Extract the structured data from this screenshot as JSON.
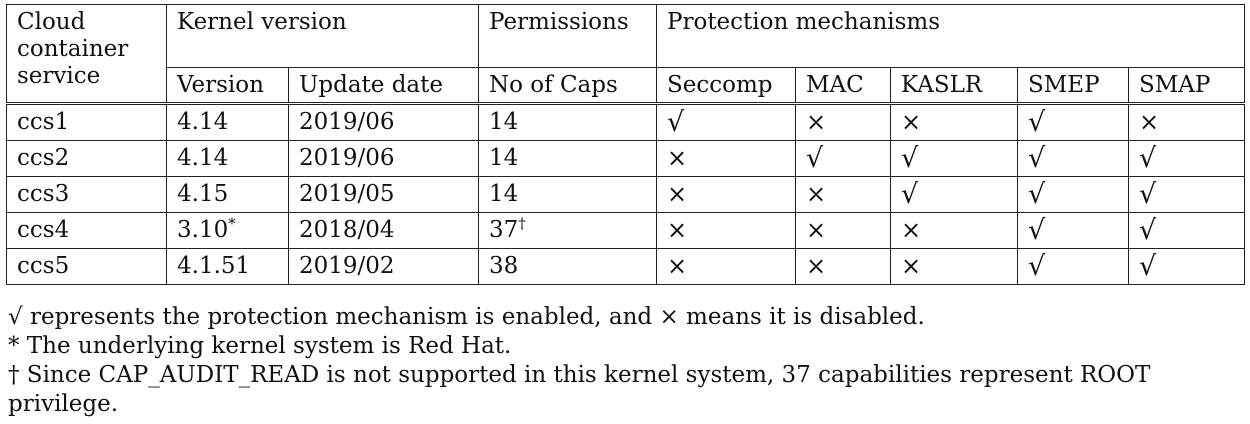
{
  "header": {
    "service": "Cloud container service",
    "kernel_version": "Kernel version",
    "permissions": "Permissions",
    "protection": "Protection mechanisms",
    "sub": {
      "version": "Version",
      "update_date": "Update date",
      "no_of_caps": "No of Caps",
      "seccomp": "Seccomp",
      "mac": "MAC",
      "kaslr": "KASLR",
      "smep": "SMEP",
      "smap": "SMAP"
    }
  },
  "rows": [
    {
      "name": "ccs1",
      "version": "4.14",
      "version_sup": "",
      "date": "2019/06",
      "caps": "14",
      "caps_sup": "",
      "seccomp": "√",
      "mac": "×",
      "kaslr": "×",
      "smep": "√",
      "smap": "×"
    },
    {
      "name": "ccs2",
      "version": "4.14",
      "version_sup": "",
      "date": "2019/06",
      "caps": "14",
      "caps_sup": "",
      "seccomp": "×",
      "mac": "√",
      "kaslr": "√",
      "smep": "√",
      "smap": "√"
    },
    {
      "name": "ccs3",
      "version": "4.15",
      "version_sup": "",
      "date": "2019/05",
      "caps": "14",
      "caps_sup": "",
      "seccomp": "×",
      "mac": "×",
      "kaslr": "√",
      "smep": "√",
      "smap": "√"
    },
    {
      "name": "ccs4",
      "version": "3.10",
      "version_sup": "*",
      "date": "2018/04",
      "caps": "37",
      "caps_sup": "†",
      "seccomp": "×",
      "mac": "×",
      "kaslr": "×",
      "smep": "√",
      "smap": "√"
    },
    {
      "name": "ccs5",
      "version": "4.1.51",
      "version_sup": "",
      "date": "2019/02",
      "caps": "38",
      "caps_sup": "",
      "seccomp": "×",
      "mac": "×",
      "kaslr": "×",
      "smep": "√",
      "smap": "√"
    }
  ],
  "notes": [
    "√ represents the protection mechanism is enabled, and × means it is disabled.",
    "* The underlying kernel system is Red Hat.",
    "† Since CAP_AUDIT_READ is not supported in this kernel system, 37 capabilities represent ROOT privilege."
  ]
}
